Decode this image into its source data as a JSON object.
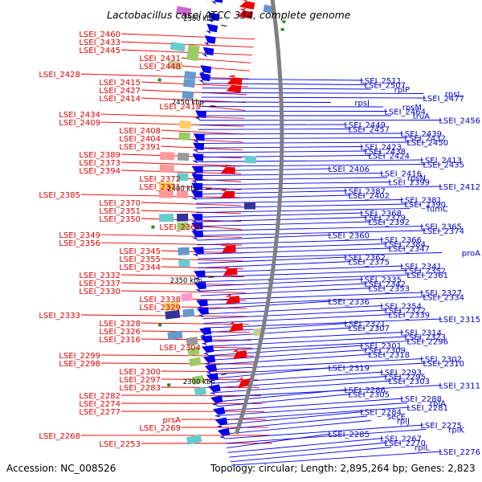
{
  "title": "Lactobacillus casei ATCC 334, complete genome",
  "footer": {
    "accession": "Accession: NC_008526",
    "topology": "Topology: circular; Length: 2,895,264 bp; Genes: 2,823"
  },
  "tick_labels": [
    "2500 kbp",
    "2450 kbp",
    "2400 kbp",
    "2350 kbp",
    "2300 kbp"
  ],
  "colors": {
    "forward": "#ee0000",
    "reverse": "#0000ee",
    "backbone": "#7f7f7f",
    "rna": "#1e8c1e"
  },
  "left_labels": [
    "LSEI_2460",
    "LSEI_2433",
    "LSEI_2445",
    "LSEI_2431",
    "LSEI_2448",
    "LSEI_2428",
    "LSEI_2415",
    "LSEI_2427",
    "LSEI_2414",
    "LSEI_2418",
    "LSEI_2434",
    "LSEI_2409",
    "LSEI_2408",
    "LSEI_2404",
    "LSEI_2391",
    "LSEI_2389",
    "LSEI_2373",
    "LSEI_2394",
    "LSEI_2372",
    "LSEI_2371",
    "LSEI_2385",
    "LSEI_2370",
    "LSEI_2351",
    "LSEI_2350",
    "LSEI_2369",
    "LSEI_2349",
    "LSEI_2356",
    "LSEI_2345",
    "LSEI_2355",
    "LSEI_2344",
    "LSEI_2332",
    "LSEI_2337",
    "LSEI_2330",
    "LSEI_2338",
    "LSEI_2329",
    "LSEI_2333",
    "LSEI_2328",
    "LSEI_2326",
    "LSEI_2316",
    "LSEI_2304",
    "LSEI_2299",
    "LSEI_2298",
    "LSEI_2300",
    "LSEI_2297",
    "LSEI_2283",
    "LSEI_2282",
    "LSEI_2274",
    "LSEI_2277",
    "prsA",
    "LSEI_2269",
    "LSEI_2268",
    "LSEI_2253"
  ],
  "right_labels": [
    "LSEI_2511",
    "LSEI_2507",
    "rplP",
    "rpsL",
    "LSEI_2477",
    "rpsJ",
    "rpsM",
    "LSEI_2464",
    "truA",
    "LSEI_2456",
    "LSEI_2449",
    "LSEI_2457",
    "LSEI_2439",
    "LSEI_2432",
    "LSEI_2450",
    "LSEI_2423",
    "LSEI_2438",
    "LSEI_2424",
    "LSEI_2413",
    "LSEI_2435",
    "LSEI_2406",
    "LSEI_2416",
    "rpsN",
    "LSEI_2399",
    "LSEI_2412",
    "LSEI_2387",
    "LSEI_2402",
    "LSEI_2381",
    "LSEI_2390",
    "fumC",
    "LSEI_2368",
    "LSEI_2379",
    "LSEI_2392",
    "LSEI_2365",
    "LSEI_2374",
    "LSEI_2360",
    "LSEI_2366",
    "LSEI_2384",
    "LSEI_2347",
    "proA",
    "LSEI_2362",
    "LSEI_2375",
    "LSEI_2341",
    "LSEI_2352",
    "LSEI_2361",
    "LSEI_2335",
    "LSEI_2342",
    "LSEI_2353",
    "LSEI_2327",
    "LSEI_2334",
    "LSEI_2336",
    "LSEI_2354",
    "LSEI_2322",
    "LSEI_2339",
    "LSEI_2315",
    "LSEI_2321",
    "LSEI_2307",
    "LSEI_2314",
    "LSEI_2323",
    "LSEI_2296",
    "LSEI_2301",
    "LSEI_2309",
    "LSEI_2318",
    "LSEI_2302",
    "LSEI_2310",
    "LSEI_2319",
    "LSEI_2293",
    "LSEI_2295",
    "LSEI_2303",
    "LSEI_2311",
    "LSEI_2286",
    "LSEI_2305",
    "LSEI_2288",
    "rplA",
    "LSEI_2281",
    "LSEI_2284",
    "secE",
    "rplJ",
    "LSEI_2275",
    "rplK",
    "LSEI_2285",
    "LSEI_2267",
    "LSEI_2270",
    "rplL",
    "LSEI_2276"
  ]
}
